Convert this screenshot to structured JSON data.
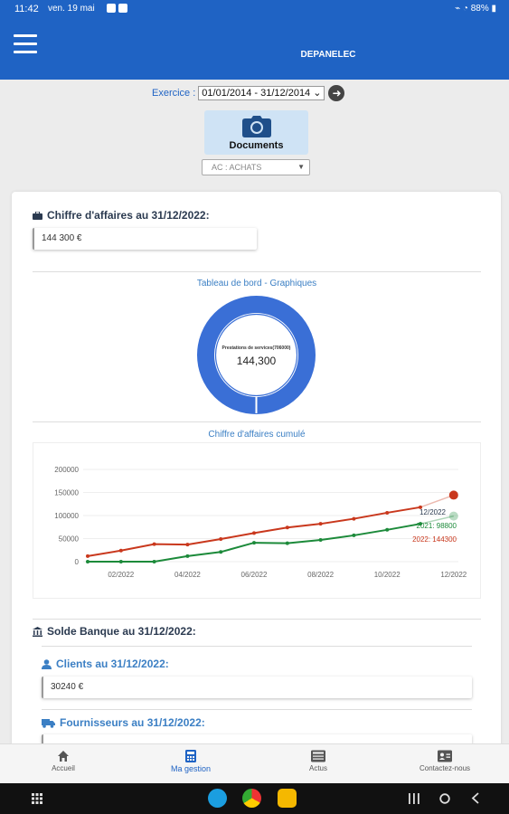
{
  "statusbar": {
    "time": "11:42",
    "date": "ven. 19 mai",
    "battery": "88%"
  },
  "appbar": {
    "title": "DEPANELEC"
  },
  "exercice": {
    "label": "Exercice :",
    "value": "01/01/2014 - 31/12/2014"
  },
  "documents": {
    "label": "Documents"
  },
  "journal": {
    "value": "AC : ACHATS"
  },
  "chiffre": {
    "title": "Chiffre d'affaires au 31/12/2022:",
    "value": "144 300 €"
  },
  "dashboard": {
    "title": "Tableau de bord - Graphiques",
    "donut_label": "Prestations de services(706000)",
    "donut_value": "144,300",
    "donut_color": "#3a6fd6"
  },
  "chart_data": {
    "type": "line",
    "title": "Chiffre d'affaires cumulé",
    "x": [
      "01/2022",
      "02/2022",
      "03/2022",
      "04/2022",
      "05/2022",
      "06/2022",
      "07/2022",
      "08/2022",
      "09/2022",
      "10/2022",
      "11/2022",
      "12/2022"
    ],
    "x_tick_labels": [
      "02/2022",
      "04/2022",
      "06/2022",
      "08/2022",
      "10/2022",
      "12/2022"
    ],
    "y_tick_labels": [
      "0",
      "50000",
      "100000",
      "150000",
      "200000"
    ],
    "ylim": [
      0,
      200000
    ],
    "series": [
      {
        "name": "2022",
        "color": "#c9381d",
        "values": [
          12000,
          24000,
          38000,
          37000,
          49000,
          62000,
          74000,
          82000,
          93000,
          106000,
          118000,
          144300
        ]
      },
      {
        "name": "2021",
        "color": "#1c8a3a",
        "values": [
          0,
          0,
          0,
          12000,
          21000,
          41000,
          40000,
          47000,
          57000,
          69000,
          82000,
          98800
        ]
      }
    ],
    "legend": {
      "period": "12/2022",
      "line_2021": "2021: 98800",
      "line_2022": "2022: 144300"
    }
  },
  "banque": {
    "title": "Solde Banque au 31/12/2022:"
  },
  "clients": {
    "title": "Clients au 31/12/2022:",
    "value": "30240 €"
  },
  "fournisseurs": {
    "title": "Fournisseurs au 31/12/2022:"
  },
  "nav": {
    "items": [
      {
        "label": "Accueil",
        "icon": "home-icon"
      },
      {
        "label": "Ma gestion",
        "icon": "calculator-icon"
      },
      {
        "label": "Actus",
        "icon": "news-icon"
      },
      {
        "label": "Contactez-nous",
        "icon": "contact-card-icon"
      }
    ]
  }
}
